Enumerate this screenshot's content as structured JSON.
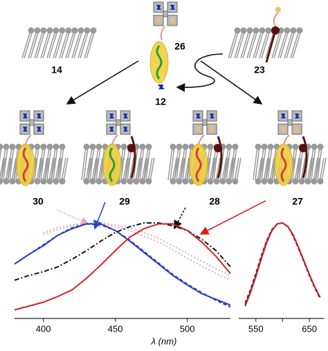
{
  "labels": {
    "c14": "14",
    "c26": "26",
    "c23": "23",
    "c12": "12",
    "c30": "30",
    "c29": "29",
    "c28": "28",
    "c27": "27"
  },
  "chart_data": [
    {
      "type": "line",
      "x_label": "λ (nm)",
      "xlim": [
        380,
        530
      ],
      "xticks": [
        400,
        450,
        500
      ],
      "ylim": [
        0,
        1
      ],
      "x": [
        380,
        390,
        400,
        410,
        420,
        430,
        440,
        450,
        460,
        470,
        480,
        490,
        500,
        510,
        520,
        530
      ],
      "series": [
        {
          "color": "#e8aab8",
          "style": "dotted",
          "values": [
            null,
            null,
            0.9,
            0.95,
            0.98,
            1.0,
            0.99,
            0.96,
            0.92,
            0.86,
            0.8,
            0.72,
            0.63,
            0.55,
            0.47,
            0.4
          ]
        },
        {
          "color": "#bbbbbb",
          "style": "dotted",
          "values": [
            null,
            null,
            0.88,
            0.93,
            0.97,
            0.99,
            1.0,
            0.98,
            0.95,
            0.9,
            0.84,
            0.76,
            0.68,
            0.6,
            0.52,
            0.45
          ]
        },
        {
          "color": "#111111",
          "style": "dashdot",
          "values": [
            0.4,
            0.45,
            0.49,
            0.54,
            0.62,
            0.71,
            0.81,
            0.9,
            0.96,
            1.0,
            1.0,
            0.97,
            0.92,
            0.83,
            0.71,
            0.54
          ]
        },
        {
          "color": "#2a3fbf",
          "style": "dashed",
          "values": [
            0.57,
            0.67,
            0.77,
            0.87,
            0.95,
            0.99,
            0.98,
            0.92,
            0.82,
            0.7,
            0.58,
            0.46,
            0.36,
            0.27,
            0.19,
            0.12
          ]
        },
        {
          "color": "#2a3fbf",
          "style": "solid",
          "values": [
            0.57,
            0.67,
            0.76,
            0.87,
            0.94,
            0.99,
            0.99,
            0.92,
            0.81,
            0.69,
            0.57,
            0.45,
            0.35,
            0.26,
            0.2,
            0.14
          ]
        },
        {
          "color": "#d62020",
          "style": "solid",
          "values": [
            0.09,
            0.13,
            0.17,
            0.23,
            0.3,
            0.42,
            0.56,
            0.71,
            0.85,
            0.94,
            0.99,
            0.99,
            0.92,
            0.8,
            0.65,
            0.47
          ]
        }
      ]
    },
    {
      "type": "line",
      "xlim": [
        518,
        677
      ],
      "xticks": [
        550,
        650
      ],
      "minor_xticks": [
        600
      ],
      "ylim": [
        0,
        1
      ],
      "x": [
        530,
        540,
        550,
        560,
        570,
        580,
        590,
        600,
        610,
        620,
        630,
        640,
        650,
        660,
        670
      ],
      "series": [
        {
          "color": "#111111",
          "style": "dashed",
          "values": [
            0.16,
            0.3,
            0.47,
            0.65,
            0.81,
            0.93,
            0.99,
            1.0,
            0.96,
            0.86,
            0.73,
            0.59,
            0.45,
            0.32,
            0.21
          ]
        },
        {
          "color": "#2a3fbf",
          "style": "solid",
          "values": [
            0.13,
            0.27,
            0.44,
            0.62,
            0.79,
            0.92,
            0.99,
            1.0,
            0.96,
            0.87,
            0.74,
            0.6,
            0.46,
            0.33,
            0.22
          ]
        },
        {
          "color": "#d62020",
          "style": "solid",
          "values": [
            0.14,
            0.28,
            0.45,
            0.63,
            0.8,
            0.92,
            0.99,
            1.0,
            0.96,
            0.87,
            0.74,
            0.6,
            0.46,
            0.33,
            0.22
          ]
        }
      ]
    }
  ]
}
